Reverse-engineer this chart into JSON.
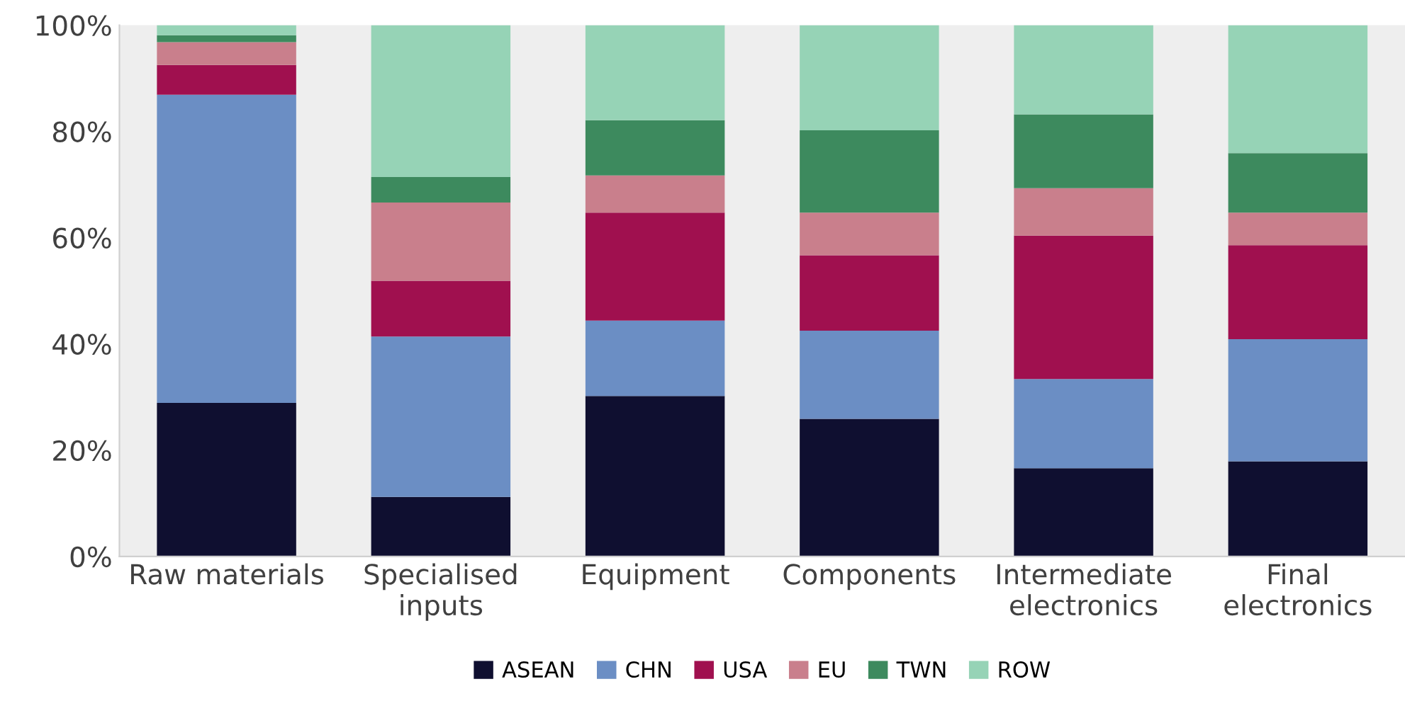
{
  "chart_data": {
    "type": "bar",
    "stacked": true,
    "categories": [
      "Raw materials",
      "Specialised\ninputs",
      "Equipment",
      "Components",
      "Intermediate\nelectronics",
      "Final\nelectronics"
    ],
    "series": [
      {
        "name": "ASEAN",
        "color": "#0f0f30",
        "values": [
          28.9,
          11.2,
          30.2,
          25.9,
          16.6,
          17.9
        ]
      },
      {
        "name": "CHN",
        "color": "#6b8ec4",
        "values": [
          58.0,
          30.2,
          14.2,
          16.6,
          16.8,
          23.0
        ]
      },
      {
        "name": "USA",
        "color": "#a0104f",
        "values": [
          5.6,
          10.5,
          20.3,
          14.2,
          27.0,
          17.7
        ]
      },
      {
        "name": "EU",
        "color": "#c97f8c",
        "values": [
          4.3,
          14.7,
          7.0,
          8.0,
          8.9,
          6.1
        ]
      },
      {
        "name": "TWN",
        "color": "#3d8a5e",
        "values": [
          1.3,
          4.8,
          10.4,
          15.5,
          13.9,
          11.2
        ]
      },
      {
        "name": "ROW",
        "color": "#96d3b6",
        "values": [
          1.9,
          28.6,
          17.9,
          19.8,
          16.8,
          24.1
        ]
      }
    ],
    "ylim": [
      0,
      100
    ],
    "yticks": [
      {
        "value": 0,
        "label": "0%"
      },
      {
        "value": 20,
        "label": "20%"
      },
      {
        "value": 40,
        "label": "40%"
      },
      {
        "value": 60,
        "label": "60%"
      },
      {
        "value": 80,
        "label": "80%"
      },
      {
        "value": 100,
        "label": "100%"
      }
    ],
    "grid": false,
    "legend": "bottom"
  }
}
